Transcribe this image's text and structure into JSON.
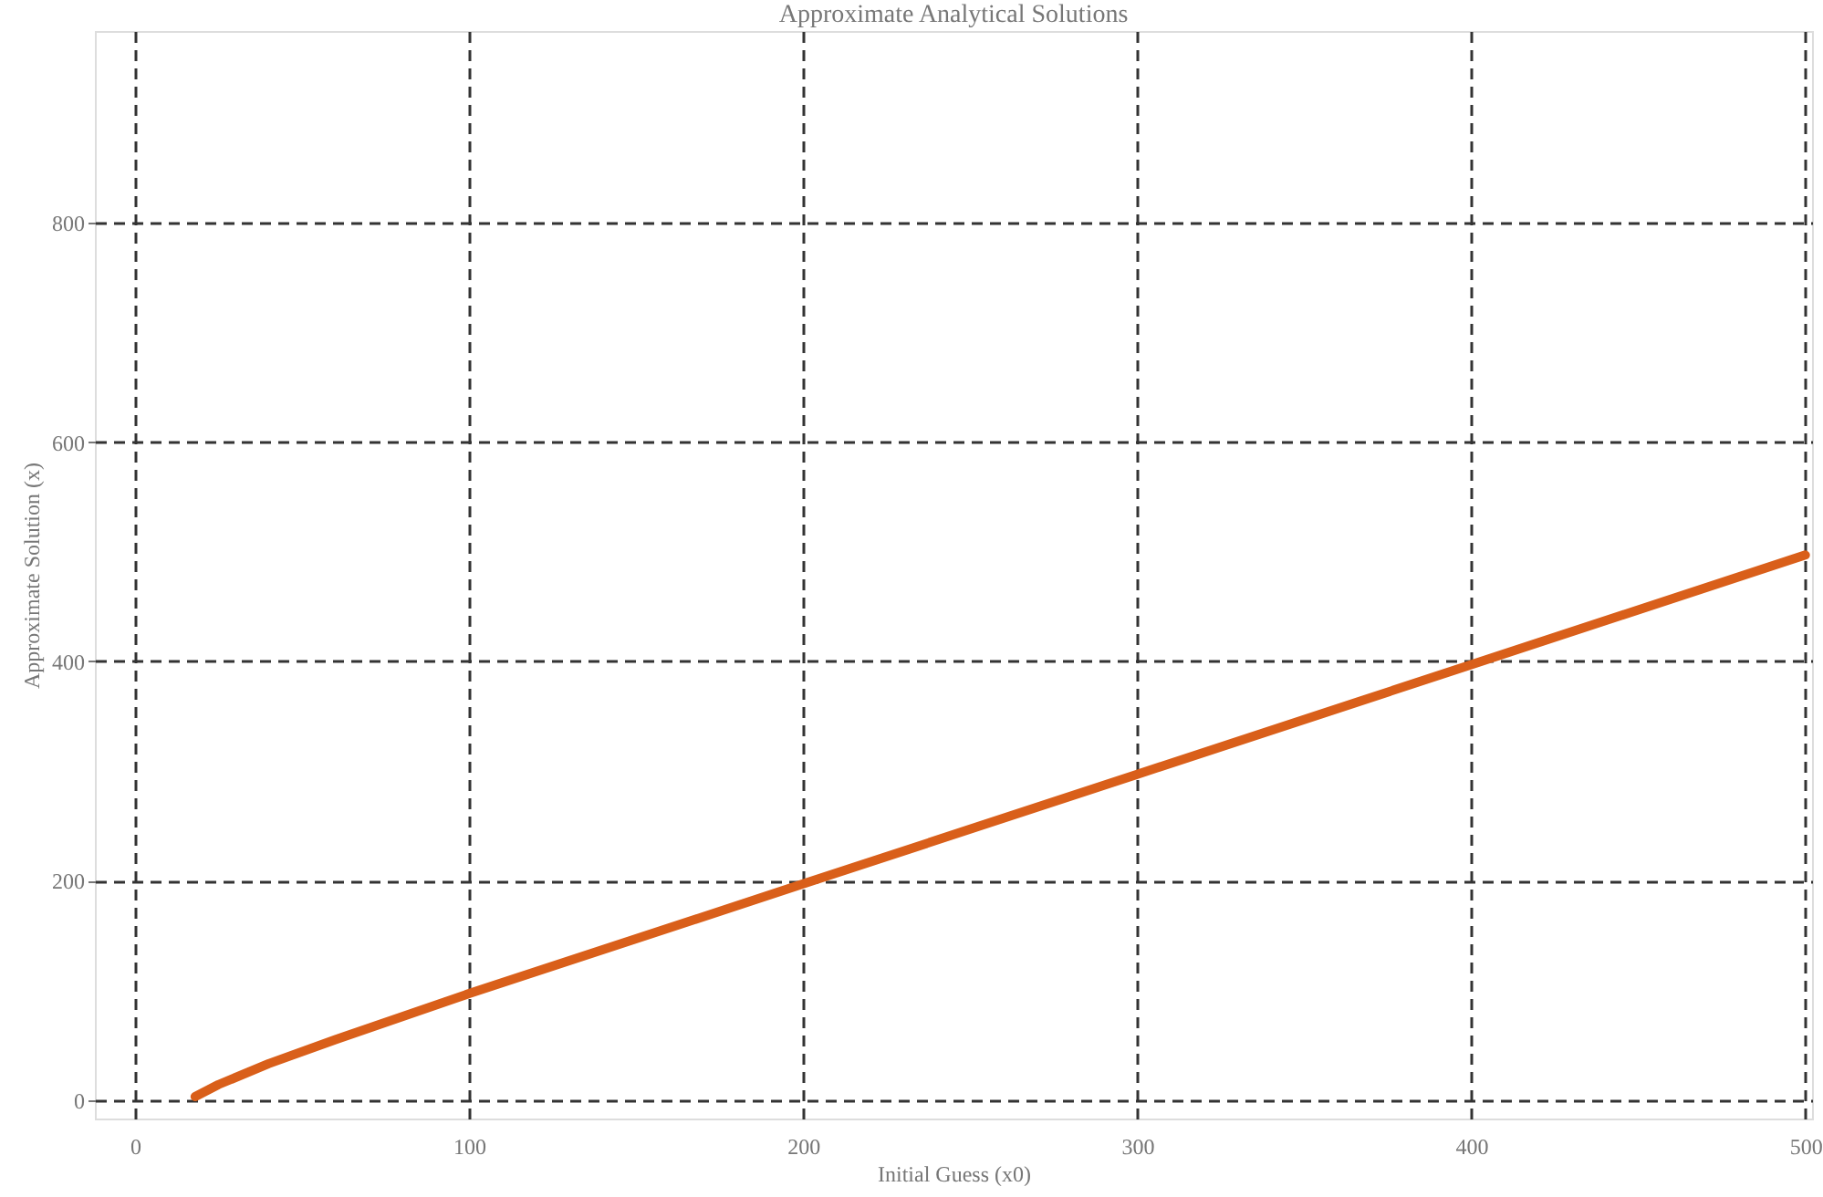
{
  "chart_data": {
    "type": "line",
    "title": "Approximate Analytical Solutions",
    "xlabel": "Initial Guess (x0)",
    "ylabel": "Approximate Solution (x)",
    "x": [
      18,
      25,
      40,
      60,
      100,
      200,
      300,
      400,
      500
    ],
    "series": [
      {
        "color": "#d95f1a",
        "values": [
          3,
          14,
          33,
          55,
          97,
          197,
          297,
          397,
          497
        ]
      }
    ],
    "xlim": [
      -12,
      502
    ],
    "ylim": [
      -17,
      975
    ],
    "xticks": [
      0,
      100,
      200,
      300,
      400,
      500
    ],
    "yticks": [
      0,
      200,
      400,
      600,
      800
    ],
    "grid": true,
    "line_style": "solid",
    "marker": "none"
  }
}
